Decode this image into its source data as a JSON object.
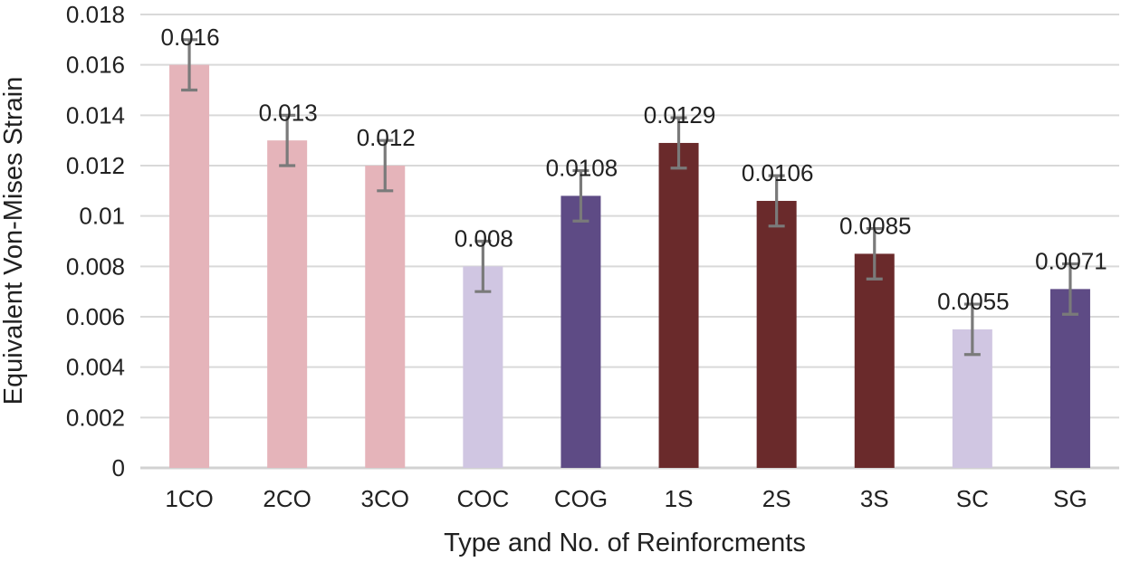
{
  "chart_data": {
    "type": "bar",
    "title": "",
    "xlabel": "Type and No. of Reinforcments",
    "ylabel": "Equivalent Von-Mises Strain",
    "categories": [
      "1CO",
      "2CO",
      "3CO",
      "COC",
      "COG",
      "1S",
      "2S",
      "3S",
      "SC",
      "SG"
    ],
    "values": [
      0.016,
      0.013,
      0.012,
      0.008,
      0.0108,
      0.0129,
      0.0106,
      0.0085,
      0.0055,
      0.0071
    ],
    "value_labels": [
      "0.016",
      "0.013",
      "0.012",
      "0.008",
      "0.0108",
      "0.0129",
      "0.0106",
      "0.0085",
      "0.0055",
      "0.0071"
    ],
    "error": 0.001,
    "ylim": [
      0,
      0.018
    ],
    "ytick_step": 0.002,
    "ytick_labels": [
      "0",
      "0.002",
      "0.004",
      "0.006",
      "0.008",
      "0.01",
      "0.012",
      "0.014",
      "0.016",
      "0.018"
    ],
    "grid": true,
    "legend": false,
    "bar_colors": [
      "#e5b4ba",
      "#e5b4ba",
      "#e5b4ba",
      "#d0c6e2",
      "#5e4b85",
      "#6a2a2b",
      "#6a2a2b",
      "#6a2a2b",
      "#d0c6e2",
      "#5e4b85"
    ],
    "palette": {
      "pink": "#e5b4ba",
      "lavender": "#d0c6e2",
      "purple": "#5e4b85",
      "maroon": "#6a2a2b",
      "error_bar": "#7a7a7a",
      "gridline": "#d9d9d9",
      "baseline": "#d2d2d2",
      "text": "#212121"
    }
  }
}
